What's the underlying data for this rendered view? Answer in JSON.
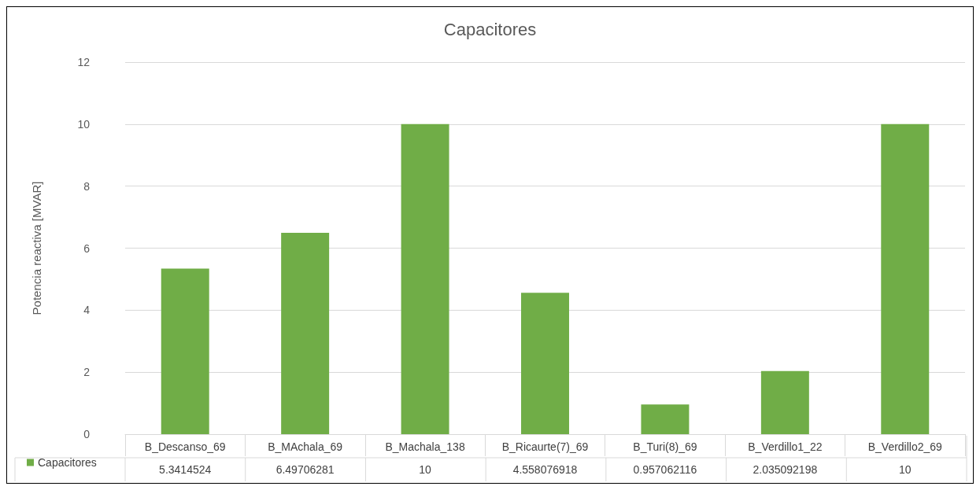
{
  "chart_data": {
    "type": "bar",
    "title": "Capacitores",
    "ylabel": "Potencia reactiva [MVAR]",
    "categories": [
      "B_Descanso_69",
      "B_MAchala_69",
      "B_Machala_138",
      "B_Ricaurte(7)_69",
      "B_Turi(8)_69",
      "B_Verdillo1_22",
      "B_Verdillo2_69"
    ],
    "series": [
      {
        "name": "Capacitores",
        "color": "#70ad47",
        "values": [
          5.3414524,
          6.49706281,
          10,
          4.558076918,
          0.957062116,
          2.035092198,
          10
        ]
      }
    ],
    "ylim": [
      0,
      12
    ],
    "yticks": [
      0,
      2,
      4,
      6,
      8,
      10,
      12
    ],
    "grid": "y",
    "legend": "bottom left",
    "data_labels": true
  }
}
